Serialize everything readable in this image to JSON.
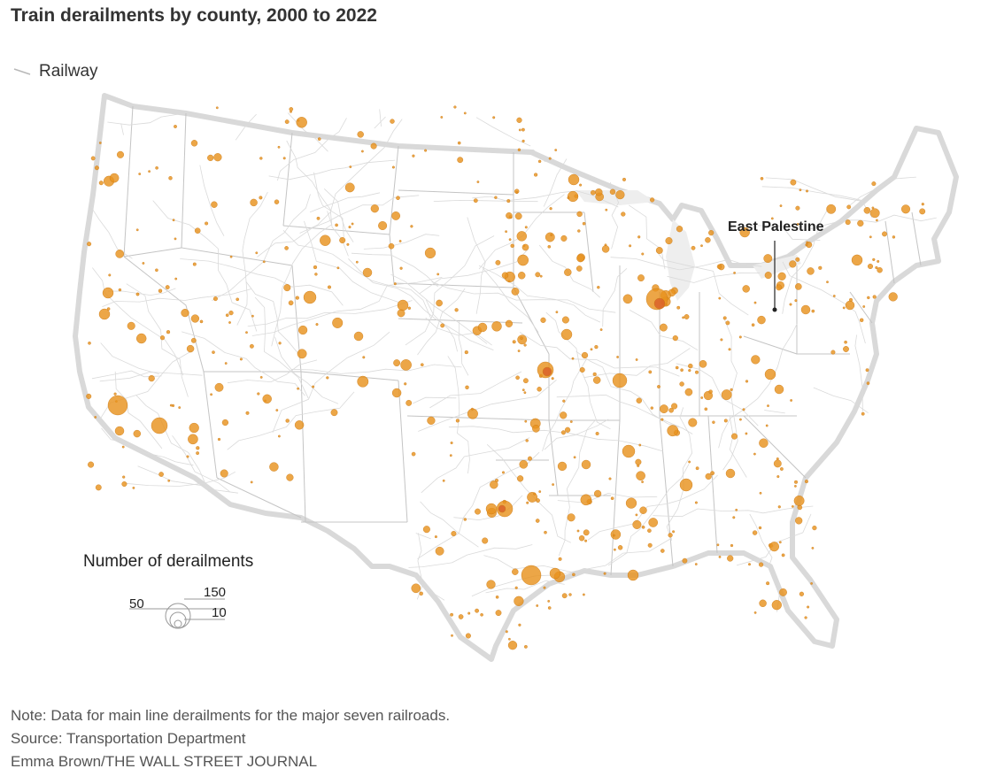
{
  "title": "Train derailments by county, 2000 to 2022",
  "legend": {
    "railway_label": "Railway",
    "size_title": "Number of derailments",
    "size_values": [
      "50",
      "150",
      "10"
    ]
  },
  "callout": {
    "label": "East Palestine"
  },
  "footer": {
    "note": "Note: Data for main line derailments for the major seven railroads.",
    "source": "Source: Transportation Department",
    "credit": "Emma Brown/THE WALL STREET JOURNAL"
  },
  "colors": {
    "land": "#ffffff",
    "land_shadow": "#e6e6e6",
    "state_border": "#bdbdbd",
    "railway": "#d6d6d6",
    "bubble": "#e8921f",
    "bubble_dark": "#d2691e",
    "text": "#333333"
  },
  "chart_data": {
    "type": "map-bubble",
    "size_legend_values": [
      10,
      50,
      150
    ]
  }
}
